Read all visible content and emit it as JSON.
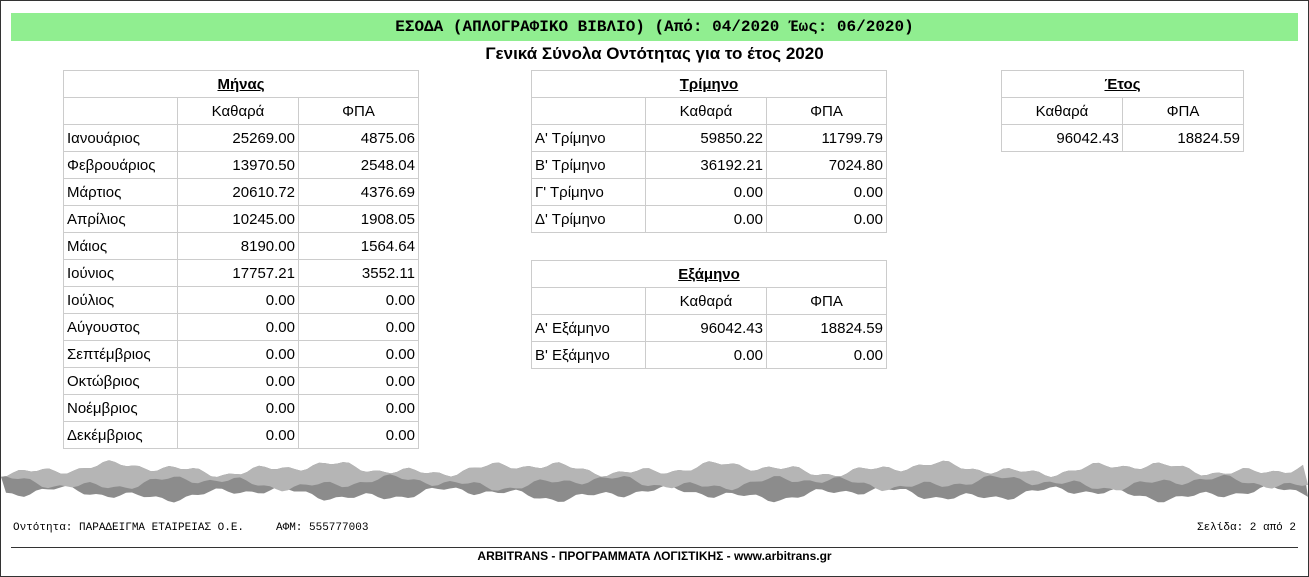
{
  "header": {
    "title": "ΕΣΟΔΑ (ΑΠΛΟΓΡΑΦΙΚΟ ΒΙΒΛΙΟ) (Από: 04/2020 Έως: 06/2020)",
    "subtitle": "Γενικά Σύνολα Οντότητας για το έτος 2020"
  },
  "tables": [
    {
      "title": "Μήνας",
      "headers": [
        "Καθαρά",
        "ΦΠΑ"
      ],
      "rows": [
        [
          "Ιανουάριος",
          "25269.00",
          "4875.06"
        ],
        [
          "Φεβρουάριος",
          "13970.50",
          "2548.04"
        ],
        [
          "Μάρτιος",
          "20610.72",
          "4376.69"
        ],
        [
          "Απρίλιος",
          "10245.00",
          "1908.05"
        ],
        [
          "Μάιος",
          "8190.00",
          "1564.64"
        ],
        [
          "Ιούνιος",
          "17757.21",
          "3552.11"
        ],
        [
          "Ιούλιος",
          "0.00",
          "0.00"
        ],
        [
          "Αύγουστος",
          "0.00",
          "0.00"
        ],
        [
          "Σεπτέμβριος",
          "0.00",
          "0.00"
        ],
        [
          "Οκτώβριος",
          "0.00",
          "0.00"
        ],
        [
          "Νοέμβριος",
          "0.00",
          "0.00"
        ],
        [
          "Δεκέμβριος",
          "0.00",
          "0.00"
        ]
      ]
    },
    {
      "title": "Τρίμηνο",
      "headers": [
        "Καθαρά",
        "ΦΠΑ"
      ],
      "rows": [
        [
          "Α' Τρίμηνο",
          "59850.22",
          "11799.79"
        ],
        [
          "Β' Τρίμηνο",
          "36192.21",
          "7024.80"
        ],
        [
          "Γ' Τρίμηνο",
          "0.00",
          "0.00"
        ],
        [
          "Δ' Τρίμηνο",
          "0.00",
          "0.00"
        ]
      ]
    },
    {
      "title": "Εξάμηνο",
      "headers": [
        "Καθαρά",
        "ΦΠΑ"
      ],
      "rows": [
        [
          "Α' Εξάμηνο",
          "96042.43",
          "18824.59"
        ],
        [
          "Β' Εξάμηνο",
          "0.00",
          "0.00"
        ]
      ]
    },
    {
      "title": "Έτος",
      "headers": [
        "Καθαρά",
        "ΦΠΑ"
      ],
      "rows": [
        [
          "96042.43",
          "18824.59"
        ]
      ]
    }
  ],
  "footer": {
    "entity": "Οντότητα: ΠΑΡΑΔΕΙΓΜΑ ΕΤΑΙΡΕΙΑΣ Ο.Ε.",
    "afm": "ΑΦΜ: 555777003",
    "page": "Σελίδα: 2 από 2",
    "brand": "ARBITRANS - ΠΡΟΓΡΑΜΜΑΤΑ ΛΟΓΙΣΤΙΚΗΣ -  www.arbitrans.gr"
  }
}
